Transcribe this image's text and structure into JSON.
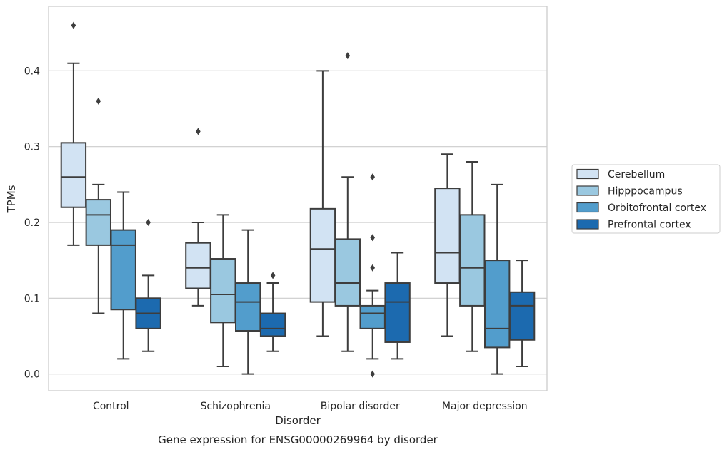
{
  "chart_data": {
    "type": "box",
    "xlabel": "Disorder",
    "ylabel": "TPMs",
    "caption": "Gene expression for ENSG00000269964 by disorder",
    "categories": [
      "Control",
      "Schizophrenia",
      "Bipolar disorder",
      "Major depression"
    ],
    "ylim": [
      -0.022,
      0.485
    ],
    "yticks": [
      0.0,
      0.1,
      0.2,
      0.3,
      0.4
    ],
    "ytick_labels": [
      "0.0",
      "0.1",
      "0.2",
      "0.3",
      "0.4"
    ],
    "grid": true,
    "legend_position": "right",
    "series": [
      {
        "name": "Cerebellum",
        "color": "#d2e3f3",
        "boxes": [
          {
            "whislo": 0.17,
            "q1": 0.22,
            "med": 0.26,
            "q3": 0.305,
            "whishi": 0.41,
            "fliers": [
              0.46
            ]
          },
          {
            "whislo": 0.09,
            "q1": 0.113,
            "med": 0.14,
            "q3": 0.173,
            "whishi": 0.2,
            "fliers": [
              0.32
            ]
          },
          {
            "whislo": 0.05,
            "q1": 0.095,
            "med": 0.165,
            "q3": 0.218,
            "whishi": 0.4,
            "fliers": []
          },
          {
            "whislo": 0.05,
            "q1": 0.12,
            "med": 0.16,
            "q3": 0.245,
            "whishi": 0.29,
            "fliers": []
          }
        ]
      },
      {
        "name": "Hipppocampus",
        "color": "#9ac8e0",
        "boxes": [
          {
            "whislo": 0.08,
            "q1": 0.17,
            "med": 0.21,
            "q3": 0.23,
            "whishi": 0.25,
            "fliers": [
              0.36
            ]
          },
          {
            "whislo": 0.01,
            "q1": 0.068,
            "med": 0.105,
            "q3": 0.152,
            "whishi": 0.21,
            "fliers": []
          },
          {
            "whislo": 0.03,
            "q1": 0.09,
            "med": 0.12,
            "q3": 0.178,
            "whishi": 0.26,
            "fliers": [
              0.42
            ]
          },
          {
            "whislo": 0.03,
            "q1": 0.09,
            "med": 0.14,
            "q3": 0.21,
            "whishi": 0.28,
            "fliers": []
          }
        ]
      },
      {
        "name": "Orbitofrontal cortex",
        "color": "#529dcc",
        "boxes": [
          {
            "whislo": 0.02,
            "q1": 0.085,
            "med": 0.17,
            "q3": 0.19,
            "whishi": 0.24,
            "fliers": []
          },
          {
            "whislo": 0.0,
            "q1": 0.057,
            "med": 0.095,
            "q3": 0.12,
            "whishi": 0.19,
            "fliers": []
          },
          {
            "whislo": 0.02,
            "q1": 0.06,
            "med": 0.08,
            "q3": 0.09,
            "whishi": 0.11,
            "fliers": [
              0.14,
              0.18,
              0.26,
              0.0
            ]
          },
          {
            "whislo": 0.0,
            "q1": 0.035,
            "med": 0.06,
            "q3": 0.15,
            "whishi": 0.25,
            "fliers": []
          }
        ]
      },
      {
        "name": "Prefrontal cortex",
        "color": "#1c6aaf",
        "boxes": [
          {
            "whislo": 0.03,
            "q1": 0.06,
            "med": 0.08,
            "q3": 0.1,
            "whishi": 0.13,
            "fliers": [
              0.2
            ]
          },
          {
            "whislo": 0.03,
            "q1": 0.05,
            "med": 0.06,
            "q3": 0.08,
            "whishi": 0.12,
            "fliers": [
              0.13
            ]
          },
          {
            "whislo": 0.02,
            "q1": 0.042,
            "med": 0.095,
            "q3": 0.12,
            "whishi": 0.16,
            "fliers": []
          },
          {
            "whislo": 0.01,
            "q1": 0.045,
            "med": 0.09,
            "q3": 0.108,
            "whishi": 0.15,
            "fliers": []
          }
        ]
      }
    ]
  }
}
